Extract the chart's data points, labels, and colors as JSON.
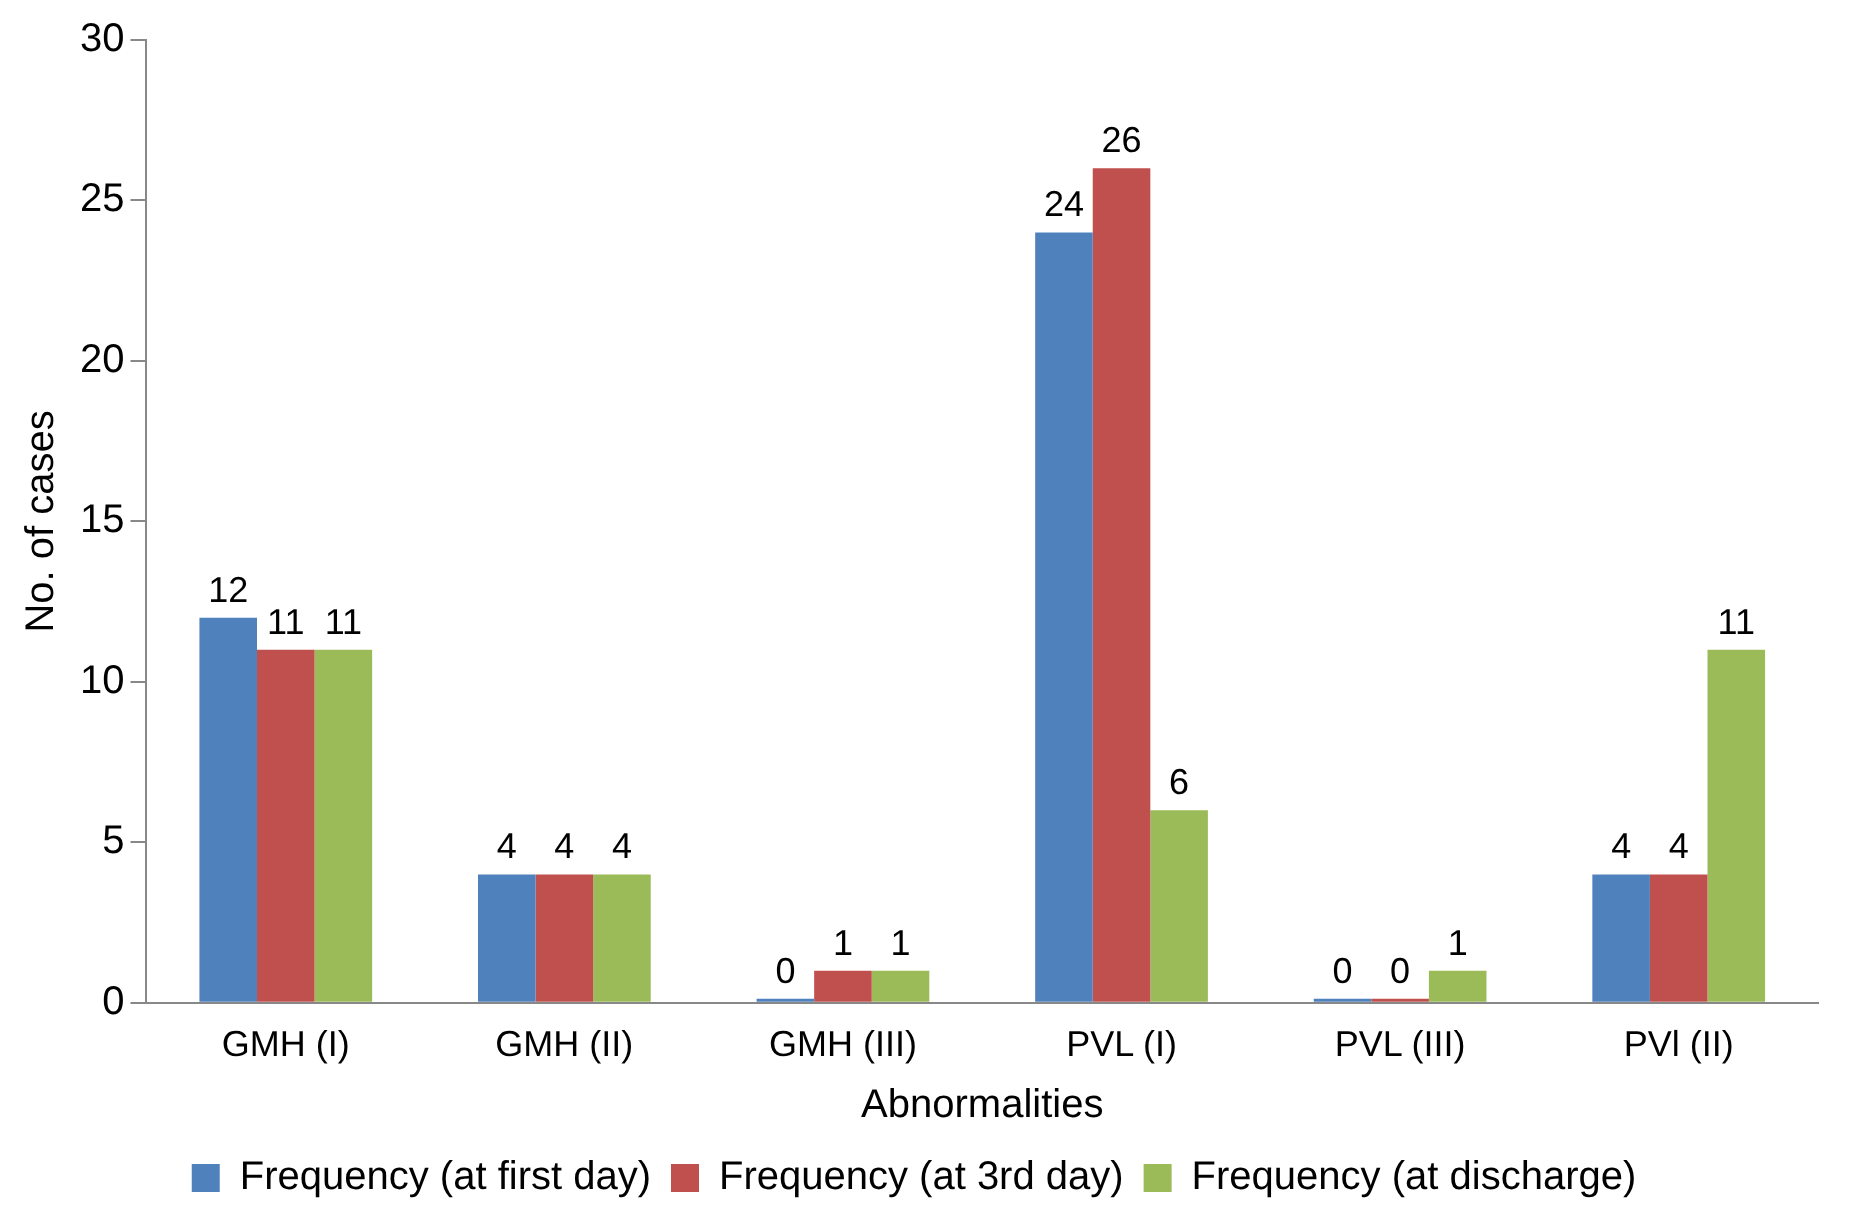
{
  "chart_data": {
    "type": "bar",
    "xlabel": "Abnormalities",
    "ylabel": "No. of cases",
    "categories": [
      "GMH (I)",
      "GMH (II)",
      "GMH (III)",
      "PVL (I)",
      "PVL (III)",
      "PVl (II)"
    ],
    "series": [
      {
        "name": "Frequency (at first day)",
        "color": "#4f81bd",
        "values": [
          12,
          4,
          0,
          24,
          0,
          4
        ]
      },
      {
        "name": "Frequency (at 3rd day)",
        "color": "#c0504d",
        "values": [
          11,
          4,
          1,
          26,
          0,
          4
        ]
      },
      {
        "name": "Frequency (at discharge)",
        "color": "#9bbb59",
        "values": [
          11,
          4,
          1,
          6,
          1,
          11
        ]
      }
    ],
    "ylim": [
      0,
      30
    ],
    "yticks": [
      0,
      5,
      10,
      15,
      20,
      25,
      30
    ],
    "grid": false,
    "legend": "bottom",
    "data_labels": true
  }
}
